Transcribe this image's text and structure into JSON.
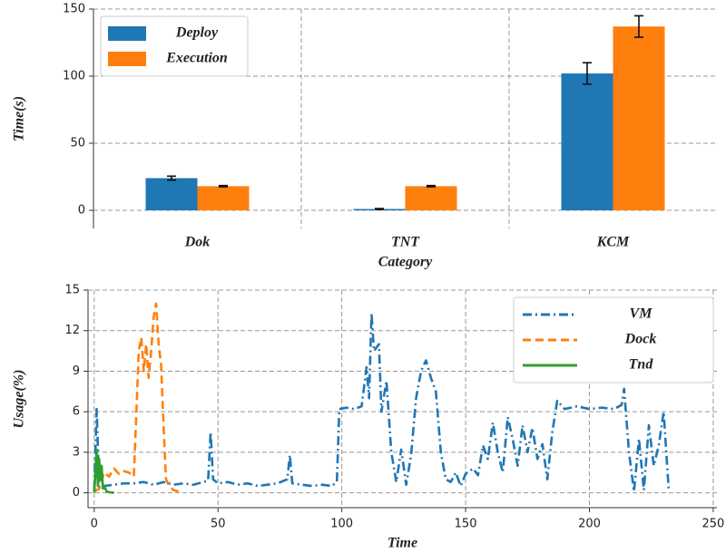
{
  "chart_data": [
    {
      "type": "bar",
      "xlabel": "Category",
      "ylabel": "Time(s)",
      "categories": [
        "Dok",
        "TNT",
        "KCM"
      ],
      "series": [
        {
          "name": "Deploy",
          "color": "#1f77b4",
          "values": [
            24,
            1,
            102
          ],
          "errors": [
            1.5,
            0.3,
            8
          ]
        },
        {
          "name": "Execution",
          "color": "#ff7f0e",
          "values": [
            18,
            18,
            137
          ],
          "errors": [
            0.5,
            0.5,
            8
          ]
        }
      ],
      "ylim": [
        -13.5,
        150
      ],
      "yticks": [
        0,
        50,
        100,
        150
      ],
      "grid": true,
      "legend": "upper left"
    },
    {
      "type": "line",
      "xlabel": "Time",
      "ylabel": "Usage(%)",
      "series": [
        {
          "name": "VM",
          "color": "#1f77b4",
          "dash": "dashdot",
          "x": [
            0,
            1,
            2,
            4,
            8,
            12,
            16,
            20,
            24,
            28,
            32,
            36,
            40,
            44,
            46,
            47,
            48,
            50,
            54,
            58,
            62,
            66,
            70,
            74,
            78,
            79,
            80,
            84,
            88,
            92,
            96,
            98,
            99,
            102,
            105,
            108,
            110,
            111,
            112,
            113,
            115,
            116,
            118,
            120,
            122,
            124,
            126,
            128,
            130,
            132,
            134,
            136,
            138,
            140,
            142,
            144,
            146,
            148,
            150,
            153,
            155,
            157,
            159,
            161,
            163,
            165,
            167,
            169,
            171,
            173,
            175,
            177,
            179,
            181,
            183,
            185,
            187,
            190,
            195,
            200,
            205,
            210,
            213,
            214,
            216,
            218,
            220,
            222,
            224,
            226,
            228,
            230,
            232
          ],
          "values": [
            0.2,
            6.2,
            0.4,
            0.5,
            0.6,
            0.7,
            0.7,
            0.8,
            0.6,
            0.8,
            0.6,
            0.7,
            0.6,
            0.8,
            0.9,
            4.5,
            1.0,
            0.7,
            0.8,
            0.6,
            0.7,
            0.5,
            0.6,
            0.7,
            1.0,
            2.8,
            0.7,
            0.6,
            0.5,
            0.6,
            0.5,
            0.8,
            6.2,
            6.3,
            6.2,
            6.4,
            9.3,
            7,
            13.3,
            10.5,
            11,
            6,
            8.3,
            3,
            0.8,
            3.2,
            0.6,
            2.8,
            7,
            9,
            9.8,
            8.5,
            7.5,
            3,
            1,
            0.8,
            1.5,
            0.5,
            1.4,
            1.8,
            1.3,
            3.5,
            2.5,
            5.2,
            3,
            1.5,
            5.6,
            4,
            2,
            5,
            3,
            4.8,
            2.5,
            3.6,
            1,
            4.5,
            6.8,
            6.2,
            6.4,
            6.2,
            6.3,
            6.2,
            6.5,
            7.7,
            3,
            0.1,
            4,
            0.2,
            5,
            2,
            3.5,
            6,
            0.3
          ]
        },
        {
          "name": "Dock",
          "color": "#ff7f0e",
          "dash": "dashed",
          "x": [
            0,
            2,
            4,
            6,
            8,
            10,
            12,
            14,
            16,
            18,
            19,
            20,
            21,
            22,
            23,
            24,
            25,
            26,
            27,
            28,
            29,
            30,
            32,
            34,
            35
          ],
          "values": [
            0.1,
            0.3,
            1.5,
            1.2,
            1.8,
            1.4,
            1.6,
            1.5,
            1.2,
            10.5,
            11.5,
            9,
            11,
            8.5,
            10.5,
            13,
            14,
            11,
            9.5,
            5,
            1,
            0.6,
            0.2,
            0.1,
            0
          ]
        },
        {
          "name": "Tnd",
          "color": "#2ca02c",
          "dash": "solid",
          "x": [
            0,
            0.5,
            1,
            1.5,
            2,
            2.5,
            3,
            3.5,
            4,
            5,
            6,
            8
          ],
          "values": [
            0,
            1.5,
            3.2,
            0.5,
            2.5,
            1,
            2,
            0.3,
            0.5,
            0.1,
            0.05,
            0
          ]
        }
      ],
      "xlim": [
        -2.5,
        251.5
      ],
      "xticks": [
        0,
        50,
        100,
        150,
        200,
        250
      ],
      "ylim": [
        -1.1,
        15
      ],
      "yticks": [
        0,
        3,
        6,
        9,
        12,
        15
      ],
      "grid": true,
      "legend": "upper right"
    }
  ]
}
